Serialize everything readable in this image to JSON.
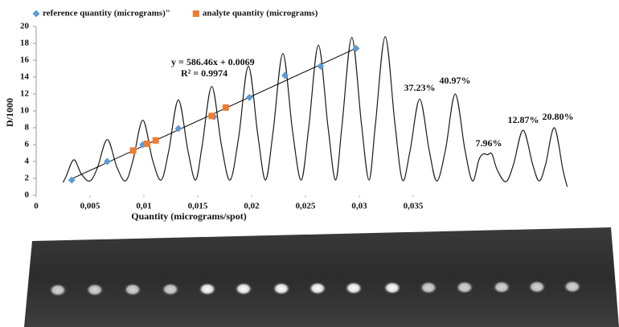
{
  "chart_data": {
    "type": "scatter",
    "x_label": "Quantity (micrograms/spot)",
    "y_label": "D/1000",
    "xlim": [
      0,
      0.05
    ],
    "ylim": [
      0,
      20
    ],
    "xticks": [
      0,
      {
        "value": 0.005,
        "label": "0,005"
      },
      {
        "value": 0.01,
        "label": "0,01"
      },
      {
        "value": 0.015,
        "label": "0,015"
      },
      {
        "value": 0.02,
        "label": "0,02"
      },
      {
        "value": 0.025,
        "label": "0,025"
      },
      {
        "value": 0.03,
        "label": "0,03"
      },
      {
        "value": 0.035,
        "label": "0,035"
      }
    ],
    "yticks": [
      0,
      2,
      4,
      6,
      8,
      10,
      12,
      14,
      16,
      18,
      20
    ],
    "grid": false,
    "legend": "top-left",
    "series": [
      {
        "name": "reference quantity (micrograms)\"",
        "color": "#5b9bd5",
        "marker": "diamond",
        "x": [
          0.0033,
          0.0066,
          0.0099,
          0.0132,
          0.0165,
          0.0198,
          0.0231,
          0.0264,
          0.0297
        ],
        "values": [
          1.8,
          4.0,
          6.0,
          7.9,
          9.3,
          11.6,
          14.2,
          15.3,
          17.4
        ]
      },
      {
        "name": "analyte quantity (micrograms)",
        "color": "#ed7d31",
        "marker": "square",
        "x": [
          0.009,
          0.0103,
          0.0111,
          0.0163,
          0.0176
        ],
        "values": [
          5.3,
          6.1,
          6.5,
          9.4,
          10.4
        ]
      }
    ],
    "trendline": {
      "slope": 586.46,
      "intercept": 0.0069,
      "x": [
        0.0033,
        0.0298
      ],
      "color": "#000000",
      "equation": "y = 586.46x + 0.0069",
      "r_squared": "R² = 0.9974"
    },
    "trace": {
      "color": "#1a1a1a",
      "x": [
        0.0025,
        0.0028,
        0.0035,
        0.0042,
        0.005,
        0.0057,
        0.0066,
        0.0075,
        0.0083,
        0.009,
        0.0099,
        0.0108,
        0.0116,
        0.0123,
        0.0132,
        0.0141,
        0.0148,
        0.0154,
        0.0163,
        0.0172,
        0.018,
        0.0188,
        0.0197,
        0.0206,
        0.0213,
        0.022,
        0.0229,
        0.0238,
        0.0246,
        0.0253,
        0.0262,
        0.0271,
        0.0278,
        0.0284,
        0.0293,
        0.0302,
        0.0309,
        0.0315,
        0.0324,
        0.0333,
        0.034,
        0.0347,
        0.0356,
        0.0365,
        0.0372,
        0.038,
        0.0389,
        0.0398,
        0.0405,
        0.0411,
        0.0415,
        0.0419,
        0.0423,
        0.0428,
        0.0436,
        0.0443,
        0.0452,
        0.0461,
        0.0467,
        0.0473,
        0.0481,
        0.0489,
        0.0493
      ],
      "y": [
        1.5,
        2.3,
        4.2,
        2.5,
        1.7,
        3.3,
        6.6,
        3.3,
        1.7,
        4.2,
        8.9,
        4.2,
        1.8,
        5.2,
        11.3,
        5.2,
        1.8,
        5.8,
        12.9,
        5.9,
        1.8,
        6.9,
        15.3,
        6.9,
        1.8,
        7.6,
        16.8,
        7.6,
        1.8,
        8.0,
        17.8,
        8.0,
        1.8,
        8.4,
        18.7,
        8.4,
        1.8,
        8.5,
        18.8,
        8.5,
        1.8,
        5.2,
        11.4,
        5.2,
        1.7,
        5.4,
        12.0,
        5.4,
        1.7,
        4.2,
        4.9,
        4.8,
        4.9,
        3.0,
        1.6,
        3.6,
        7.7,
        3.6,
        1.7,
        3.7,
        8.0,
        3.0,
        1.0
      ]
    },
    "annotations": [
      "37.23%",
      "40.97%",
      "7.96%",
      "12.87%",
      "20.80%"
    ]
  }
}
